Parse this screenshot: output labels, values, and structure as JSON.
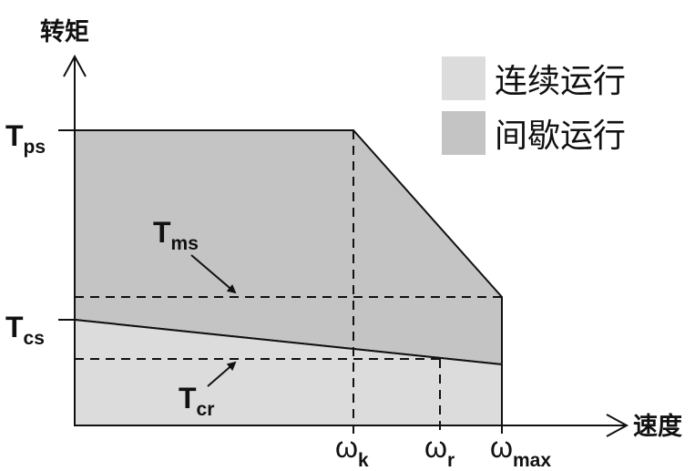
{
  "axes": {
    "y_title": "转矩",
    "x_title": "速度"
  },
  "legend": [
    {
      "label": "连续运行",
      "color": "#dcdcdc"
    },
    {
      "label": "间歇运行",
      "color": "#c4c4c4"
    }
  ],
  "y_ticks": [
    {
      "main": "T",
      "sub": "ps"
    },
    {
      "main": "T",
      "sub": "cs"
    }
  ],
  "x_ticks": [
    {
      "main": "ω",
      "sub": "k"
    },
    {
      "main": "ω",
      "sub": "r"
    },
    {
      "main": "ω",
      "sub": "max"
    }
  ],
  "annotations": [
    {
      "main": "T",
      "sub": "ms"
    },
    {
      "main": "T",
      "sub": "cr"
    }
  ],
  "colors": {
    "continuous_fill": "#dcdcdc",
    "intermittent_fill": "#c4c4c4",
    "line": "#111111"
  }
}
